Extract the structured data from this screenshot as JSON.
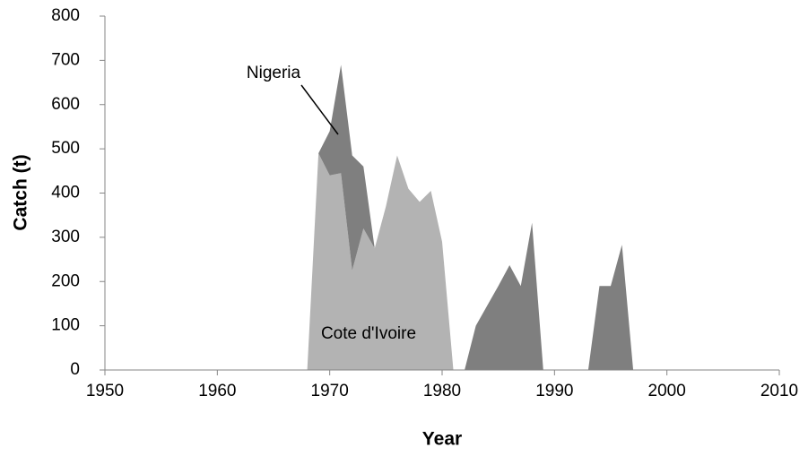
{
  "chart_data": {
    "type": "stacked-area",
    "xlabel": "Year",
    "ylabel": "Catch (t)",
    "x": [
      1968,
      1969,
      1970,
      1971,
      1972,
      1973,
      1974,
      1975,
      1976,
      1977,
      1978,
      1979,
      1980,
      1981,
      1982,
      1983,
      1984,
      1985,
      1986,
      1987,
      1988,
      1989,
      1990,
      1991,
      1992,
      1993,
      1994,
      1995,
      1996,
      1997
    ],
    "series": [
      {
        "name": "Cote d'Ivoire",
        "color": "#b3b3b3",
        "values": [
          0,
          490,
          440,
          445,
          225,
          320,
          275,
          370,
          485,
          410,
          380,
          405,
          290,
          0,
          0,
          0,
          0,
          0,
          0,
          0,
          0,
          0,
          0,
          0,
          0,
          0,
          0,
          0,
          0,
          0
        ]
      },
      {
        "name": "Nigeria",
        "color": "#7f7f7f",
        "values": [
          0,
          0,
          100,
          245,
          260,
          140,
          0,
          0,
          0,
          0,
          0,
          0,
          0,
          0,
          0,
          100,
          145,
          190,
          237,
          190,
          333,
          0,
          0,
          0,
          0,
          0,
          190,
          190,
          283,
          0
        ]
      }
    ],
    "xlim": [
      1950,
      2010
    ],
    "xticks": [
      1950,
      1960,
      1970,
      1980,
      1990,
      2000,
      2010
    ],
    "ylim": [
      0,
      800
    ],
    "yticks": [
      0,
      100,
      200,
      300,
      400,
      500,
      600,
      700,
      800
    ]
  }
}
